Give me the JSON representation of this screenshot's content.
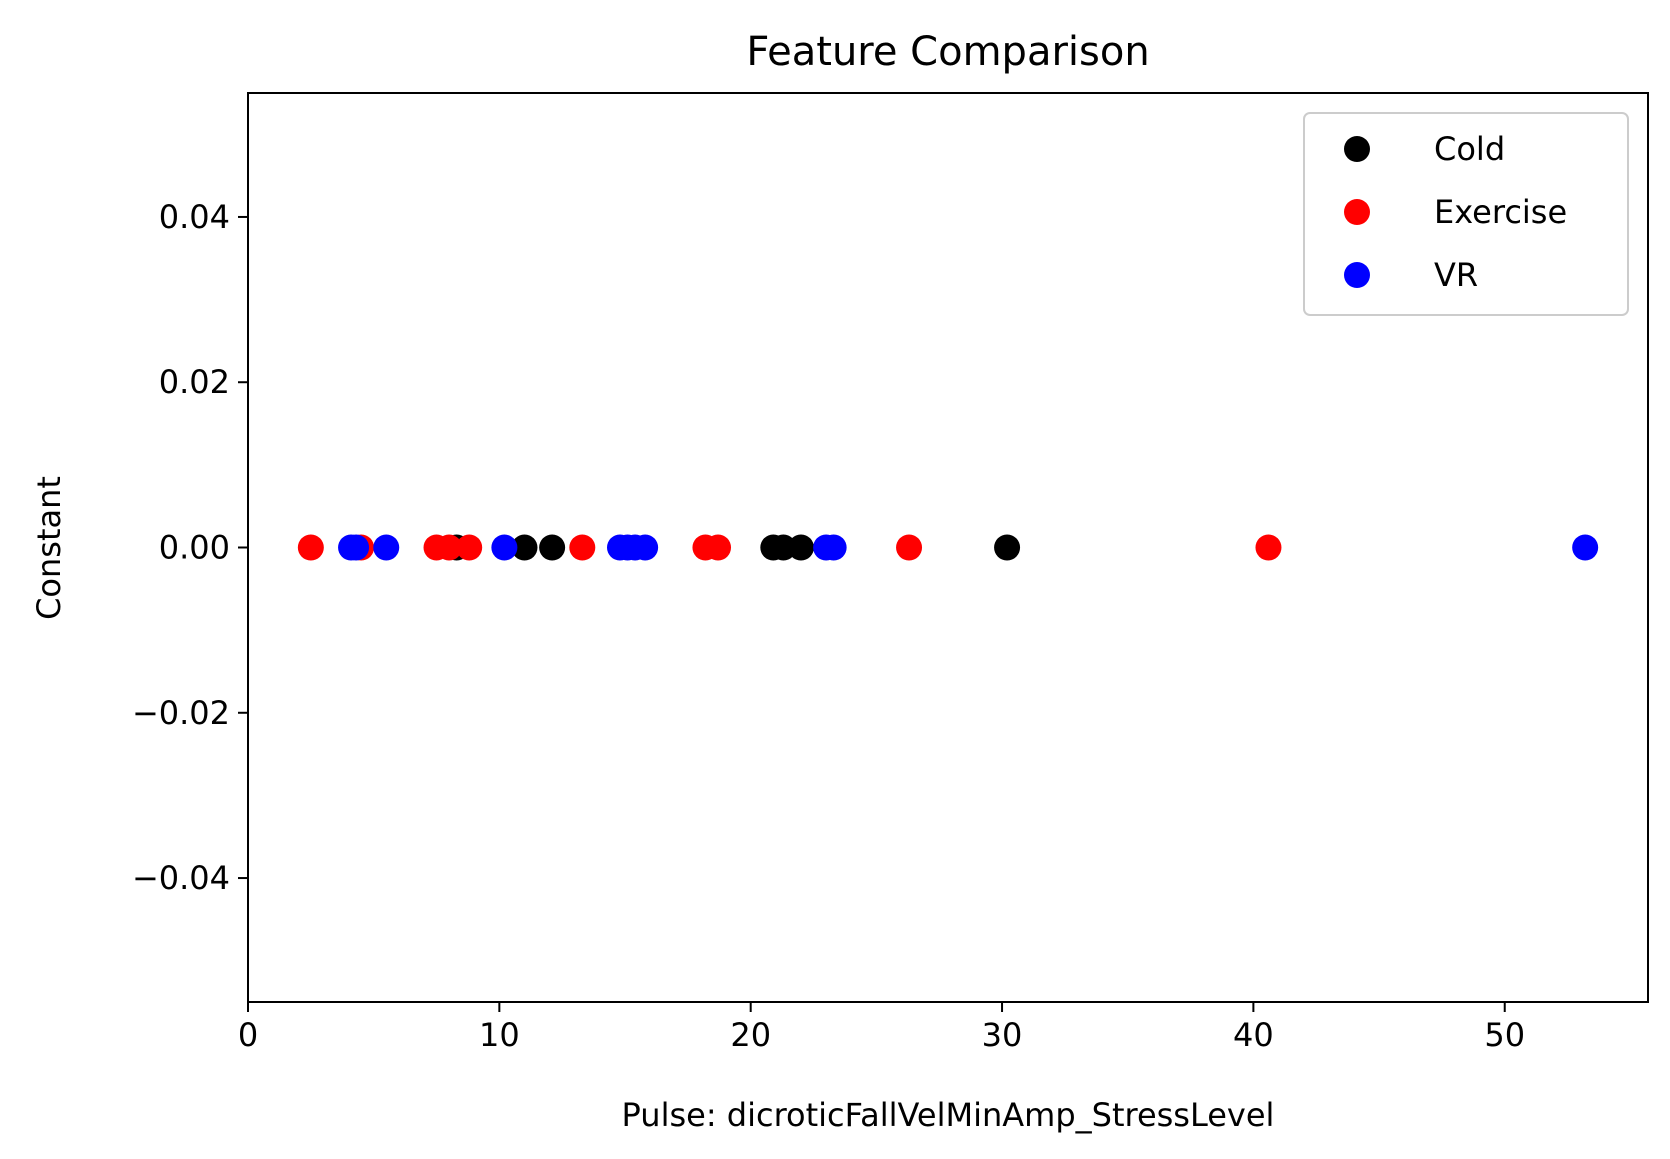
{
  "chart_data": {
    "type": "scatter",
    "title": "Feature Comparison",
    "xlabel": "Pulse: dicroticFallVelMinAmp_StressLevel",
    "ylabel": "Constant",
    "xlim": [
      0,
      55.7
    ],
    "ylim": [
      -0.055,
      0.055
    ],
    "xticks": [
      0,
      10,
      20,
      30,
      40,
      50
    ],
    "xtick_labels": [
      "0",
      "10",
      "20",
      "30",
      "40",
      "50"
    ],
    "yticks": [
      0.04,
      0.02,
      0.0,
      -0.02,
      -0.04
    ],
    "ytick_labels": [
      "0.04",
      "0.02",
      "0.00",
      "−0.02",
      "−0.04"
    ],
    "grid": false,
    "legend_position": "top-right",
    "series": [
      {
        "name": "Cold",
        "color": "#000000",
        "x": [
          8.3,
          11.0,
          12.1,
          20.9,
          21.3,
          22.0,
          30.2
        ],
        "y": [
          0,
          0,
          0,
          0,
          0,
          0,
          0
        ]
      },
      {
        "name": "Exercise",
        "color": "#ff0000",
        "x": [
          2.5,
          4.5,
          7.5,
          8.0,
          8.8,
          13.3,
          18.2,
          18.7,
          26.3,
          40.6
        ],
        "y": [
          0,
          0,
          0,
          0,
          0,
          0,
          0,
          0,
          0,
          0
        ]
      },
      {
        "name": "VR",
        "color": "#0000ff",
        "x": [
          4.1,
          4.3,
          5.5,
          10.2,
          14.8,
          15.1,
          15.4,
          15.8,
          23.0,
          23.3,
          53.2
        ],
        "y": [
          0,
          0,
          0,
          0,
          0,
          0,
          0,
          0,
          0,
          0,
          0
        ]
      }
    ]
  }
}
